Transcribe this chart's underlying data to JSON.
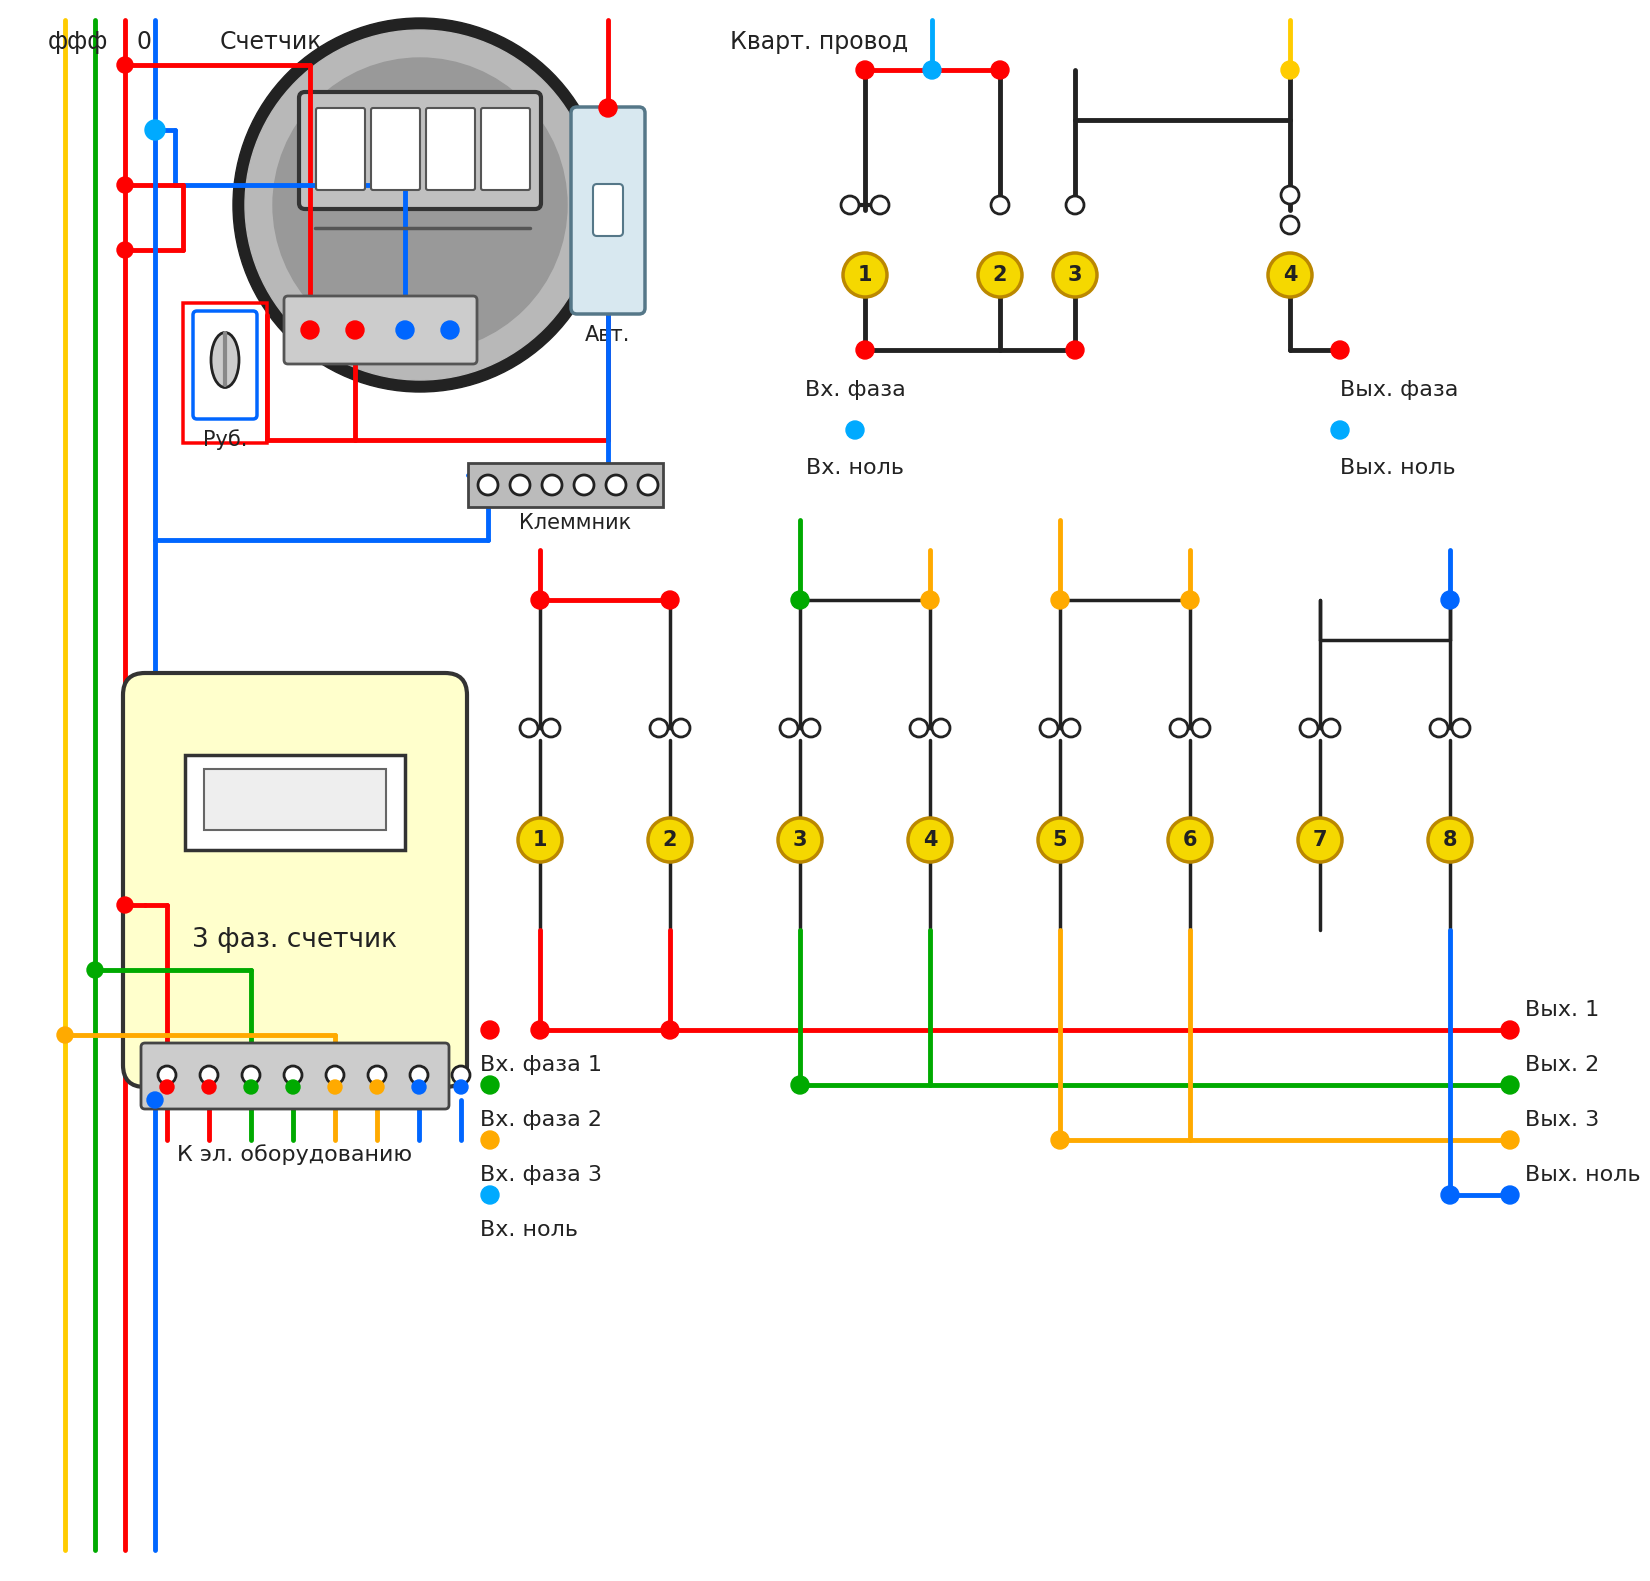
{
  "bg_color": "#ffffff",
  "wire_colors": {
    "red": "#ff0000",
    "blue": "#0066ff",
    "yellow": "#ffcc00",
    "green": "#00aa00",
    "cyan": "#00aaff",
    "orange": "#ffaa00",
    "black": "#222222"
  },
  "labels": {
    "fff": "ффф",
    "zero": "0",
    "counter": "Счетчик",
    "kvart": "Кварт. провод",
    "rub": "Руб.",
    "avt": "Авт.",
    "klemm": "Клеммник",
    "vx_faza": "Вх. фаза",
    "vy_faza": "Вых. фаза",
    "vx_nol": "Вх. ноль",
    "vy_nol": "Вых. ноль",
    "three_phase": "3 фаз. счетчик",
    "k_el": "К эл. оборудованию",
    "vx_faza1": "Вх. фаза 1",
    "vx_faza2": "Вх. фаза 2",
    "vx_faza3": "Вх. фаза 3",
    "vx_nol2": "Вх. ноль",
    "vy1": "Вых. 1",
    "vy2": "Вых. 2",
    "vy3": "Вых. 3",
    "vy_nol2": "Вых. ноль"
  }
}
